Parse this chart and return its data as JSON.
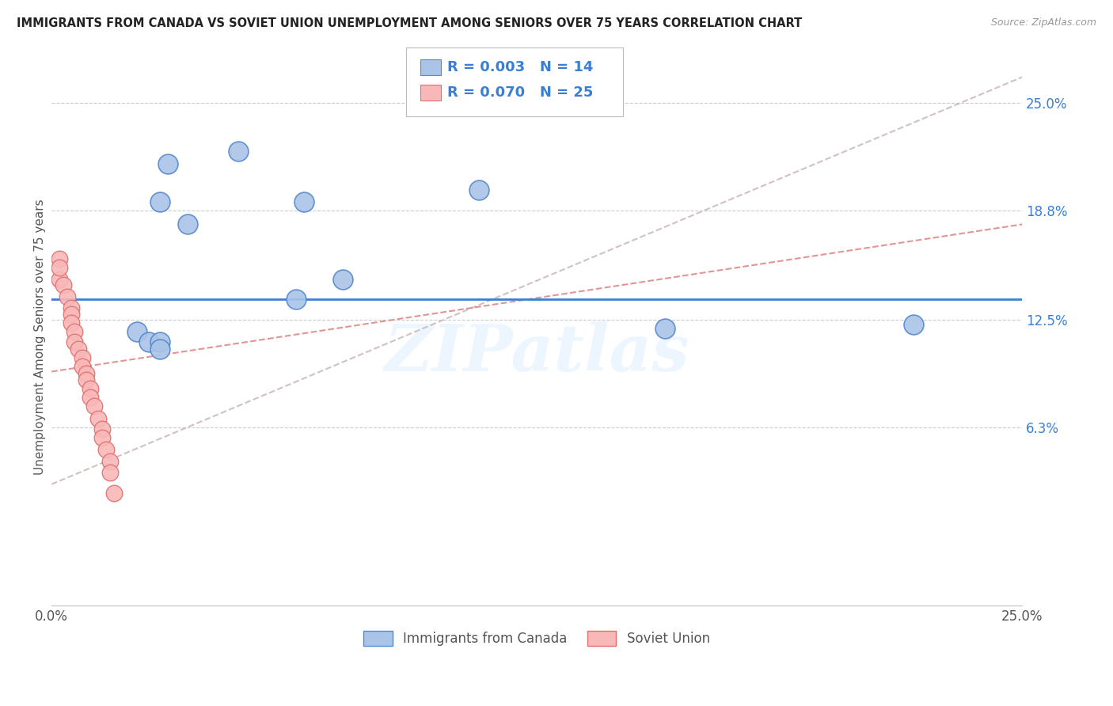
{
  "title": "IMMIGRANTS FROM CANADA VS SOVIET UNION UNEMPLOYMENT AMONG SENIORS OVER 75 YEARS CORRELATION CHART",
  "source": "Source: ZipAtlas.com",
  "ylabel": "Unemployment Among Seniors over 75 years",
  "xlim": [
    0,
    0.25
  ],
  "ylim": [
    -0.04,
    0.27
  ],
  "xtick_pos": [
    0.0,
    0.05,
    0.1,
    0.15,
    0.2,
    0.25
  ],
  "xtick_labels": [
    "0.0%",
    "",
    "",
    "",
    "",
    "25.0%"
  ],
  "ytick_right": [
    0.063,
    0.125,
    0.188,
    0.25
  ],
  "ytick_right_labels": [
    "6.3%",
    "12.5%",
    "18.8%",
    "25.0%"
  ],
  "hline_y": 0.137,
  "hline_color": "#3a7fd5",
  "canada_color": "#aac4e8",
  "canada_edge": "#5588cc",
  "soviet_color": "#f9b8b8",
  "soviet_edge": "#e07070",
  "canada_label": "Immigrants from Canada",
  "soviet_label": "Soviet Union",
  "canada_R": "0.003",
  "canada_N": "14",
  "soviet_R": "0.070",
  "soviet_N": "25",
  "watermark": "ZIPatlas",
  "trend_color": "#ddaaaa",
  "canada_points": [
    [
      0.03,
      0.215
    ],
    [
      0.048,
      0.222
    ],
    [
      0.028,
      0.193
    ],
    [
      0.035,
      0.18
    ],
    [
      0.065,
      0.193
    ],
    [
      0.11,
      0.2
    ],
    [
      0.075,
      0.148
    ],
    [
      0.063,
      0.137
    ],
    [
      0.022,
      0.118
    ],
    [
      0.025,
      0.112
    ],
    [
      0.028,
      0.112
    ],
    [
      0.158,
      0.12
    ],
    [
      0.222,
      0.122
    ],
    [
      0.028,
      0.108
    ]
  ],
  "soviet_points": [
    [
      0.002,
      0.148
    ],
    [
      0.003,
      0.145
    ],
    [
      0.004,
      0.138
    ],
    [
      0.005,
      0.132
    ],
    [
      0.005,
      0.128
    ],
    [
      0.005,
      0.123
    ],
    [
      0.006,
      0.118
    ],
    [
      0.006,
      0.112
    ],
    [
      0.007,
      0.108
    ],
    [
      0.008,
      0.103
    ],
    [
      0.008,
      0.098
    ],
    [
      0.009,
      0.094
    ],
    [
      0.009,
      0.09
    ],
    [
      0.01,
      0.085
    ],
    [
      0.01,
      0.08
    ],
    [
      0.011,
      0.075
    ],
    [
      0.012,
      0.068
    ],
    [
      0.013,
      0.062
    ],
    [
      0.013,
      0.057
    ],
    [
      0.014,
      0.05
    ],
    [
      0.015,
      0.043
    ],
    [
      0.015,
      0.037
    ],
    [
      0.016,
      0.025
    ],
    [
      0.002,
      0.16
    ],
    [
      0.002,
      0.155
    ]
  ],
  "trend_x": [
    0.0,
    0.25
  ],
  "canada_trend_y": [
    0.03,
    0.265
  ],
  "soviet_trend_y": [
    0.095,
    0.18
  ]
}
